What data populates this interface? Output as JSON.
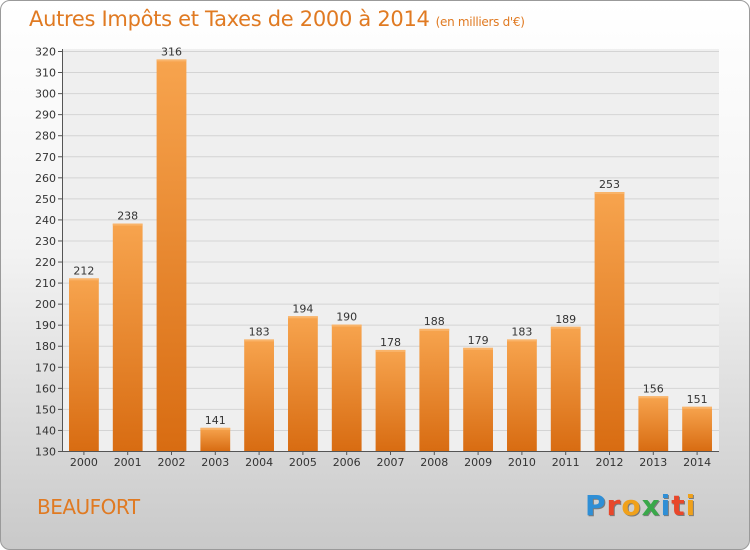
{
  "chart_data": {
    "type": "bar",
    "title": "Autres Impôts et Taxes de 2000 à 2014",
    "subtitle": "(en milliers d'€)",
    "categories": [
      "2000",
      "2001",
      "2002",
      "2003",
      "2004",
      "2005",
      "2006",
      "2007",
      "2008",
      "2009",
      "2010",
      "2011",
      "2012",
      "2013",
      "2014"
    ],
    "values": [
      212,
      238,
      316,
      141,
      183,
      194,
      190,
      178,
      188,
      179,
      183,
      189,
      253,
      156,
      151
    ],
    "ylim": [
      130,
      320
    ],
    "ytick_step": 10,
    "grid": true,
    "bar_color": "#f0923a"
  },
  "footer": {
    "city": "BEAUFORT",
    "logo": "Proxiti"
  },
  "logo_colors": [
    "#2f8fd6",
    "#e8472b",
    "#f0a11b",
    "#3aa84a",
    "#2f8fd6",
    "#e8472b",
    "#f0a11b"
  ]
}
